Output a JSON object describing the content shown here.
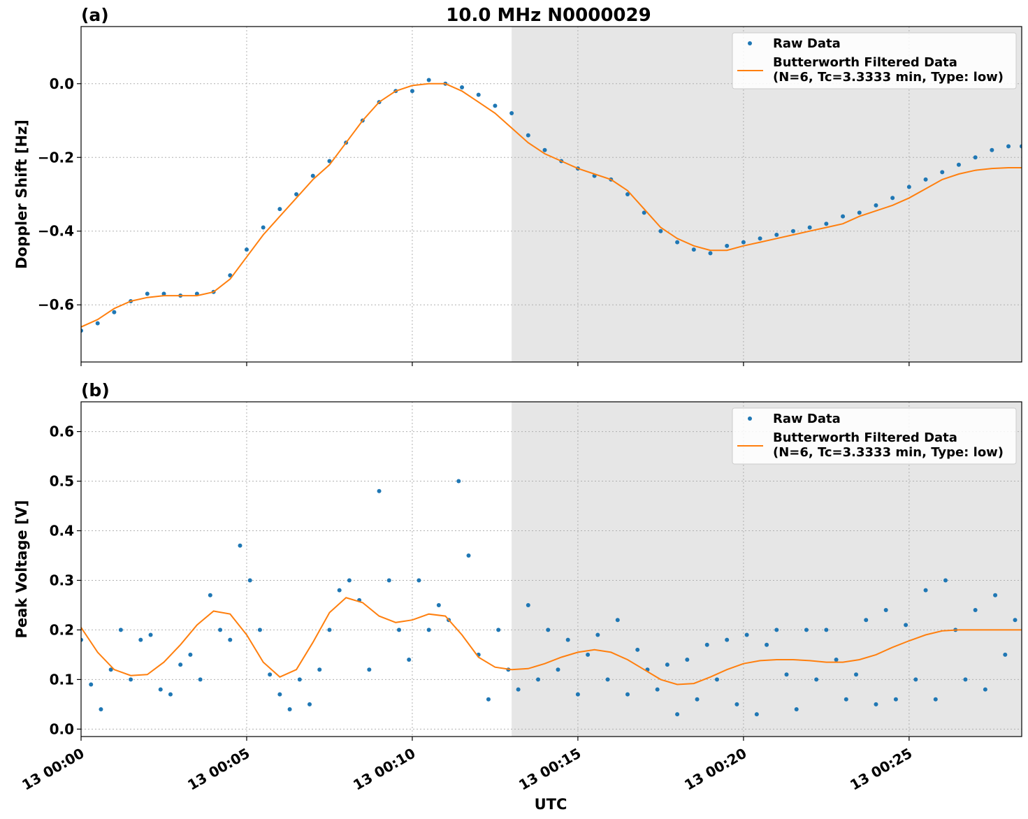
{
  "chart_data": [
    {
      "panel": "(a)",
      "type": "scatter",
      "title": "10.0 MHz N0000029",
      "xlabel": "",
      "ylabel": "Doppler Shift [Hz]",
      "xlim": [
        0,
        28.4
      ],
      "ylim": [
        -0.755,
        0.155
      ],
      "yticks": [
        0.0,
        -0.2,
        -0.4,
        -0.6
      ],
      "ytick_labels": [
        "0.0",
        "−0.2",
        "−0.4",
        "−0.6"
      ],
      "xticks": [
        0,
        5,
        10,
        15,
        20,
        25
      ],
      "xtick_labels": [
        "13 00:00",
        "13 00:05",
        "13 00:10",
        "13 00:15",
        "13 00:20",
        "13 00:25"
      ],
      "grid": true,
      "shaded_region": {
        "x_start": 13.0,
        "x_end": 28.4,
        "color": "#e6e6e6"
      },
      "legend": {
        "placement": "top-right",
        "entries": [
          "Raw Data",
          "Butterworth Filtered Data",
          "(N=6, Tc=3.3333 min, Type: low)"
        ]
      },
      "series": [
        {
          "name": "Raw Data",
          "kind": "points",
          "color": "#1f77b4",
          "x": [
            0.0,
            0.5,
            1.0,
            1.5,
            2.0,
            2.5,
            3.0,
            3.5,
            4.0,
            4.5,
            5.0,
            5.5,
            6.0,
            6.5,
            7.0,
            7.5,
            8.0,
            8.5,
            9.0,
            9.5,
            10.0,
            10.5,
            11.0,
            11.5,
            12.0,
            12.5,
            13.0,
            13.5,
            14.0,
            14.5,
            15.0,
            15.5,
            16.0,
            16.5,
            17.0,
            17.5,
            18.0,
            18.5,
            19.0,
            19.5,
            20.0,
            20.5,
            21.0,
            21.5,
            22.0,
            22.5,
            23.0,
            23.5,
            24.0,
            24.5,
            25.0,
            25.5,
            26.0,
            26.5,
            27.0,
            27.5,
            28.0,
            28.4
          ],
          "y": [
            -0.67,
            -0.65,
            -0.62,
            -0.59,
            -0.57,
            -0.57,
            -0.575,
            -0.57,
            -0.565,
            -0.52,
            -0.45,
            -0.39,
            -0.34,
            -0.3,
            -0.25,
            -0.21,
            -0.16,
            -0.1,
            -0.05,
            -0.02,
            -0.02,
            0.01,
            0.0,
            -0.01,
            -0.03,
            -0.06,
            -0.08,
            -0.14,
            -0.18,
            -0.21,
            -0.23,
            -0.25,
            -0.26,
            -0.3,
            -0.35,
            -0.4,
            -0.43,
            -0.45,
            -0.46,
            -0.44,
            -0.43,
            -0.42,
            -0.41,
            -0.4,
            -0.39,
            -0.38,
            -0.36,
            -0.35,
            -0.33,
            -0.31,
            -0.28,
            -0.26,
            -0.24,
            -0.22,
            -0.2,
            -0.18,
            -0.17,
            -0.17
          ]
        },
        {
          "name": "Butterworth Filtered Data",
          "kind": "line",
          "color": "#ff7f0e",
          "x": [
            0.0,
            0.5,
            1.0,
            1.5,
            2.0,
            2.5,
            3.0,
            3.5,
            4.0,
            4.5,
            5.0,
            5.5,
            6.0,
            6.5,
            7.0,
            7.5,
            8.0,
            8.5,
            9.0,
            9.5,
            10.0,
            10.5,
            11.0,
            11.5,
            12.0,
            12.5,
            13.0,
            13.5,
            14.0,
            14.5,
            15.0,
            15.5,
            16.0,
            16.5,
            17.0,
            17.5,
            18.0,
            18.5,
            19.0,
            19.5,
            20.0,
            20.5,
            21.0,
            21.5,
            22.0,
            22.5,
            23.0,
            23.5,
            24.0,
            24.5,
            25.0,
            25.5,
            26.0,
            26.5,
            27.0,
            27.5,
            28.0,
            28.4
          ],
          "y": [
            -0.66,
            -0.64,
            -0.61,
            -0.59,
            -0.58,
            -0.575,
            -0.575,
            -0.575,
            -0.565,
            -0.53,
            -0.47,
            -0.41,
            -0.36,
            -0.31,
            -0.26,
            -0.22,
            -0.16,
            -0.1,
            -0.05,
            -0.02,
            -0.005,
            0.0,
            0.0,
            -0.02,
            -0.05,
            -0.08,
            -0.12,
            -0.16,
            -0.19,
            -0.21,
            -0.23,
            -0.245,
            -0.26,
            -0.29,
            -0.34,
            -0.39,
            -0.42,
            -0.44,
            -0.452,
            -0.452,
            -0.44,
            -0.43,
            -0.42,
            -0.41,
            -0.4,
            -0.39,
            -0.38,
            -0.36,
            -0.345,
            -0.33,
            -0.31,
            -0.285,
            -0.26,
            -0.245,
            -0.235,
            -0.23,
            -0.228,
            -0.228
          ]
        }
      ]
    },
    {
      "panel": "(b)",
      "type": "scatter",
      "title": "",
      "xlabel": "UTC",
      "ylabel": "Peak Voltage [V]",
      "xlim": [
        0,
        28.4
      ],
      "ylim": [
        -0.015,
        0.66
      ],
      "yticks": [
        0.0,
        0.1,
        0.2,
        0.3,
        0.4,
        0.5,
        0.6
      ],
      "ytick_labels": [
        "0.0",
        "0.1",
        "0.2",
        "0.3",
        "0.4",
        "0.5",
        "0.6"
      ],
      "xticks": [
        0,
        5,
        10,
        15,
        20,
        25
      ],
      "xtick_labels": [
        "13 00:00",
        "13 00:05",
        "13 00:10",
        "13 00:15",
        "13 00:20",
        "13 00:25"
      ],
      "grid": true,
      "shaded_region": {
        "x_start": 13.0,
        "x_end": 28.4,
        "color": "#e6e6e6"
      },
      "legend": {
        "placement": "top-right",
        "entries": [
          "Raw Data",
          "Butterworth Filtered Data",
          "(N=6, Tc=3.3333 min, Type: low)"
        ]
      },
      "series": [
        {
          "name": "Raw Data",
          "kind": "points",
          "color": "#1f77b4",
          "x": [
            0.0,
            0.3,
            0.6,
            0.9,
            1.2,
            1.5,
            1.8,
            2.1,
            2.4,
            2.7,
            3.0,
            3.3,
            3.6,
            3.9,
            4.2,
            4.5,
            4.8,
            5.1,
            5.4,
            5.7,
            6.0,
            6.3,
            6.6,
            6.9,
            7.2,
            7.5,
            7.8,
            8.1,
            8.4,
            8.7,
            9.0,
            9.3,
            9.6,
            9.9,
            10.2,
            10.5,
            10.8,
            11.1,
            11.4,
            11.7,
            12.0,
            12.3,
            12.6,
            12.9,
            13.2,
            13.5,
            13.8,
            14.1,
            14.4,
            14.7,
            15.0,
            15.3,
            15.6,
            15.9,
            16.2,
            16.5,
            16.8,
            17.1,
            17.4,
            17.7,
            18.0,
            18.3,
            18.6,
            18.9,
            19.2,
            19.5,
            19.8,
            20.1,
            20.4,
            20.7,
            21.0,
            21.3,
            21.6,
            21.9,
            22.2,
            22.5,
            22.8,
            23.1,
            23.4,
            23.7,
            24.0,
            24.3,
            24.6,
            24.9,
            25.2,
            25.5,
            25.8,
            26.1,
            26.4,
            26.7,
            27.0,
            27.3,
            27.6,
            27.9,
            28.2
          ],
          "y": [
            0.18,
            0.09,
            0.04,
            0.12,
            0.2,
            0.1,
            0.18,
            0.19,
            0.08,
            0.07,
            0.13,
            0.15,
            0.1,
            0.27,
            0.2,
            0.18,
            0.37,
            0.3,
            0.2,
            0.11,
            0.07,
            0.04,
            0.1,
            0.05,
            0.12,
            0.2,
            0.28,
            0.3,
            0.26,
            0.12,
            0.48,
            0.3,
            0.2,
            0.14,
            0.3,
            0.2,
            0.25,
            0.22,
            0.5,
            0.35,
            0.15,
            0.06,
            0.2,
            0.12,
            0.08,
            0.25,
            0.1,
            0.2,
            0.12,
            0.18,
            0.07,
            0.15,
            0.19,
            0.1,
            0.22,
            0.07,
            0.16,
            0.12,
            0.08,
            0.13,
            0.03,
            0.14,
            0.06,
            0.17,
            0.1,
            0.18,
            0.05,
            0.19,
            0.03,
            0.17,
            0.2,
            0.11,
            0.04,
            0.2,
            0.1,
            0.2,
            0.14,
            0.06,
            0.11,
            0.22,
            0.05,
            0.24,
            0.06,
            0.21,
            0.1,
            0.28,
            0.06,
            0.3,
            0.2,
            0.1,
            0.24,
            0.08,
            0.27,
            0.15,
            0.22
          ]
        },
        {
          "name": "Butterworth Filtered Data",
          "kind": "line",
          "color": "#ff7f0e",
          "x": [
            0.0,
            0.5,
            1.0,
            1.5,
            2.0,
            2.5,
            3.0,
            3.5,
            4.0,
            4.5,
            5.0,
            5.5,
            6.0,
            6.5,
            7.0,
            7.5,
            8.0,
            8.5,
            9.0,
            9.5,
            10.0,
            10.5,
            11.0,
            11.5,
            12.0,
            12.5,
            13.0,
            13.5,
            14.0,
            14.5,
            15.0,
            15.5,
            16.0,
            16.5,
            17.0,
            17.5,
            18.0,
            18.5,
            19.0,
            19.5,
            20.0,
            20.5,
            21.0,
            21.5,
            22.0,
            22.5,
            23.0,
            23.5,
            24.0,
            24.5,
            25.0,
            25.5,
            26.0,
            26.5,
            27.0,
            27.5,
            28.0,
            28.4
          ],
          "y": [
            0.205,
            0.155,
            0.12,
            0.108,
            0.11,
            0.135,
            0.17,
            0.21,
            0.238,
            0.232,
            0.19,
            0.135,
            0.105,
            0.12,
            0.175,
            0.235,
            0.265,
            0.255,
            0.228,
            0.215,
            0.22,
            0.232,
            0.228,
            0.19,
            0.145,
            0.125,
            0.12,
            0.122,
            0.132,
            0.145,
            0.155,
            0.16,
            0.155,
            0.14,
            0.12,
            0.1,
            0.09,
            0.092,
            0.105,
            0.12,
            0.132,
            0.138,
            0.14,
            0.14,
            0.138,
            0.135,
            0.135,
            0.14,
            0.15,
            0.165,
            0.178,
            0.19,
            0.198,
            0.2,
            0.2,
            0.2,
            0.2,
            0.2
          ]
        }
      ]
    }
  ]
}
